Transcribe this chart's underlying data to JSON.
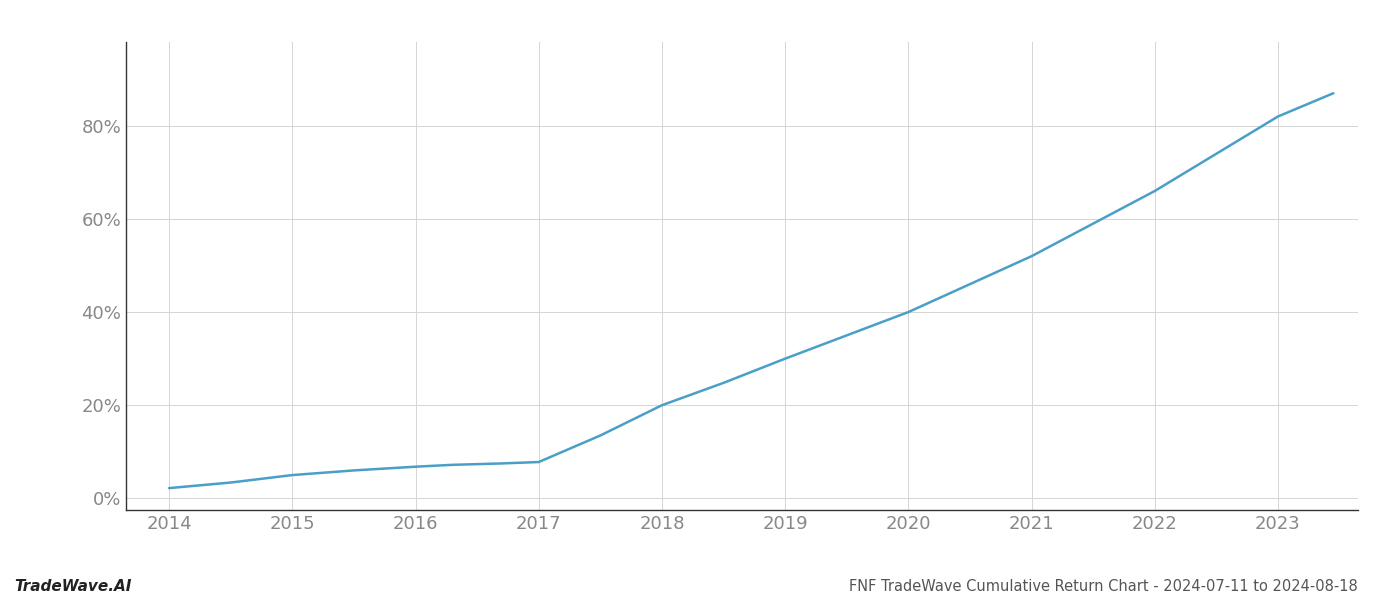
{
  "x_values": [
    2014.0,
    2014.5,
    2015.0,
    2015.5,
    2016.0,
    2016.3,
    2016.7,
    2017.0,
    2017.5,
    2018.0,
    2018.5,
    2019.0,
    2019.5,
    2020.0,
    2020.5,
    2021.0,
    2021.5,
    2022.0,
    2022.5,
    2023.0,
    2023.45
  ],
  "y_values": [
    0.022,
    0.034,
    0.05,
    0.06,
    0.068,
    0.072,
    0.075,
    0.078,
    0.135,
    0.2,
    0.248,
    0.3,
    0.35,
    0.4,
    0.46,
    0.52,
    0.59,
    0.66,
    0.74,
    0.82,
    0.87
  ],
  "line_color": "#4a9fc8",
  "line_width": 1.8,
  "background_color": "#ffffff",
  "grid_color": "#d5d5d5",
  "title": "FNF TradeWave Cumulative Return Chart - 2024-07-11 to 2024-08-18",
  "watermark": "TradeWave.AI",
  "x_tick_labels": [
    "2014",
    "2015",
    "2016",
    "2017",
    "2018",
    "2019",
    "2020",
    "2021",
    "2022",
    "2023"
  ],
  "x_tick_positions": [
    2014,
    2015,
    2016,
    2017,
    2018,
    2019,
    2020,
    2021,
    2022,
    2023
  ],
  "y_tick_labels": [
    "0%",
    "20%",
    "40%",
    "60%",
    "80%"
  ],
  "y_tick_positions": [
    0.0,
    0.2,
    0.4,
    0.6,
    0.8
  ],
  "xlim": [
    2013.65,
    2023.65
  ],
  "ylim": [
    -0.025,
    0.98
  ],
  "title_fontsize": 10.5,
  "watermark_fontsize": 11,
  "tick_fontsize": 13,
  "axis_label_color": "#888888",
  "bottom_text_color": "#555555"
}
